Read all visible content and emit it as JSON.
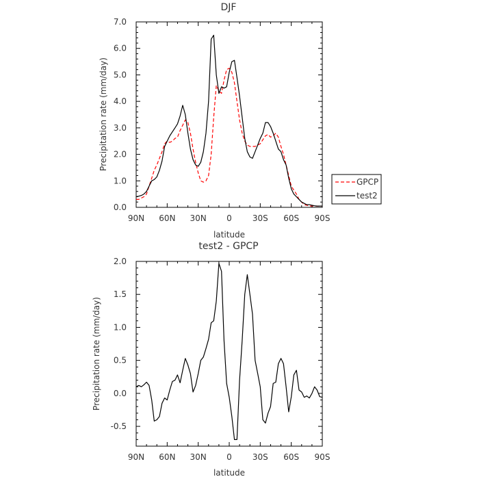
{
  "chart_data": [
    {
      "type": "line",
      "title": "DJF",
      "xlabel": "latitude",
      "ylabel": "Precipitation rate (mm/day)",
      "x_ticks": [
        "90N",
        "60N",
        "30N",
        "0",
        "30S",
        "60S",
        "90S"
      ],
      "y_ticks": [
        "0.0",
        "1.0",
        "2.0",
        "3.0",
        "4.0",
        "5.0",
        "6.0",
        "7.0"
      ],
      "xlim": [
        -90,
        90
      ],
      "ylim": [
        0,
        7
      ],
      "x_direction": "North (90N) on the left, South (90S) on the right",
      "legend_position": "right of plot, bottom",
      "series": [
        {
          "name": "GPCP",
          "color": "#ff0000",
          "dash": "dashed",
          "x": [
            -90,
            -87.5,
            -85,
            -82.5,
            -80,
            -77.5,
            -75,
            -72.5,
            -70,
            -67.5,
            -65,
            -62.5,
            -60,
            -57.5,
            -55,
            -52.5,
            -50,
            -47.5,
            -45,
            -42.5,
            -40,
            -37.5,
            -35,
            -32.5,
            -30,
            -27.5,
            -25,
            -22.5,
            -20,
            -17.5,
            -15,
            -12.5,
            -10,
            -7.5,
            -5,
            -2.5,
            0,
            2.5,
            5,
            7.5,
            10,
            12.5,
            15,
            17.5,
            20,
            22.5,
            25,
            27.5,
            30,
            32.5,
            35,
            37.5,
            40,
            42.5,
            45,
            47.5,
            50,
            52.5,
            55,
            57.5,
            60,
            62.5,
            65,
            67.5,
            70,
            72.5,
            75,
            77.5,
            80,
            82.5,
            85,
            87.5,
            90
          ],
          "y": [
            0.3,
            0.3,
            0.35,
            0.4,
            0.5,
            0.8,
            1.1,
            1.4,
            1.6,
            1.85,
            2.1,
            2.4,
            2.5,
            2.45,
            2.5,
            2.6,
            2.65,
            2.9,
            3.1,
            3.3,
            3.2,
            2.8,
            2.2,
            1.7,
            1.3,
            1.0,
            0.95,
            1.0,
            1.2,
            2.0,
            3.4,
            4.6,
            4.4,
            4.3,
            4.8,
            5.2,
            5.25,
            5.1,
            4.7,
            4.0,
            3.3,
            2.8,
            2.5,
            2.35,
            2.3,
            2.3,
            2.3,
            2.35,
            2.4,
            2.55,
            2.7,
            2.75,
            2.65,
            2.7,
            2.8,
            2.65,
            2.3,
            2.0,
            1.6,
            1.2,
            0.8,
            0.65,
            0.5,
            0.3,
            0.2,
            0.1,
            0.08,
            0.05,
            0.05,
            0.05,
            0.05,
            0.05,
            0.05
          ]
        },
        {
          "name": "test2",
          "color": "#000000",
          "dash": "solid",
          "x": [
            -90,
            -87.5,
            -85,
            -82.5,
            -80,
            -77.5,
            -75,
            -72.5,
            -70,
            -67.5,
            -65,
            -62.5,
            -60,
            -57.5,
            -55,
            -52.5,
            -50,
            -47.5,
            -45,
            -42.5,
            -40,
            -37.5,
            -35,
            -32.5,
            -30,
            -27.5,
            -25,
            -22.5,
            -20,
            -17.5,
            -15,
            -12.5,
            -10,
            -7.5,
            -5,
            -2.5,
            0,
            2.5,
            5,
            7.5,
            10,
            12.5,
            15,
            17.5,
            20,
            22.5,
            25,
            27.5,
            30,
            32.5,
            35,
            37.5,
            40,
            42.5,
            45,
            47.5,
            50,
            52.5,
            55,
            57.5,
            60,
            62.5,
            65,
            67.5,
            70,
            72.5,
            75,
            77.5,
            80,
            82.5,
            85,
            87.5,
            90
          ],
          "y": [
            0.4,
            0.42,
            0.45,
            0.5,
            0.6,
            0.8,
            1.0,
            1.05,
            1.15,
            1.4,
            1.75,
            2.3,
            2.5,
            2.7,
            2.85,
            3.0,
            3.15,
            3.45,
            3.85,
            3.5,
            2.8,
            2.2,
            1.8,
            1.6,
            1.55,
            1.7,
            2.1,
            2.8,
            4.0,
            6.35,
            6.5,
            5.0,
            4.3,
            4.55,
            4.5,
            4.55,
            5.1,
            5.5,
            5.55,
            4.9,
            4.2,
            3.4,
            2.6,
            2.1,
            1.9,
            1.85,
            2.1,
            2.35,
            2.6,
            2.8,
            3.2,
            3.2,
            3.05,
            2.8,
            2.5,
            2.2,
            2.1,
            1.8,
            1.6,
            1.1,
            0.7,
            0.5,
            0.4,
            0.3,
            0.2,
            0.15,
            0.1,
            0.1,
            0.08,
            0.06,
            0.05,
            0.05,
            0.05
          ]
        }
      ]
    },
    {
      "type": "line",
      "title": "test2 - GPCP",
      "xlabel": "latitude",
      "ylabel": "Precipitation rate (mm/day)",
      "x_ticks": [
        "90N",
        "60N",
        "30N",
        "0",
        "30S",
        "60S",
        "90S"
      ],
      "y_ticks": [
        "-0.5",
        "0.0",
        "0.5",
        "1.0",
        "1.5",
        "2.0"
      ],
      "xlim": [
        -90,
        90
      ],
      "ylim": [
        -0.8,
        2.0
      ],
      "x_direction": "North (90N) on the left, South (90S) on the right",
      "series": [
        {
          "color": "#000000",
          "dash": "solid",
          "x": [
            -90,
            -87.5,
            -85,
            -82.5,
            -80,
            -77.5,
            -75,
            -72.5,
            -70,
            -67.5,
            -65,
            -62.5,
            -60,
            -57.5,
            -55,
            -52.5,
            -50,
            -47.5,
            -45,
            -42.5,
            -40,
            -37.5,
            -35,
            -32.5,
            -30,
            -27.5,
            -25,
            -22.5,
            -20,
            -17.5,
            -15,
            -12.5,
            -10,
            -7.5,
            -5,
            -2.5,
            0,
            2.5,
            5,
            7.5,
            10,
            12.5,
            15,
            17.5,
            20,
            22.5,
            25,
            27.5,
            30,
            32.5,
            35,
            37.5,
            40,
            42.5,
            45,
            47.5,
            50,
            52.5,
            55,
            57.5,
            60,
            62.5,
            65,
            67.5,
            70,
            72.5,
            75,
            77.5,
            80,
            82.5,
            85,
            87.5,
            90
          ],
          "y": [
            0.1,
            0.12,
            0.1,
            0.13,
            0.17,
            0.12,
            -0.1,
            -0.42,
            -0.4,
            -0.35,
            -0.15,
            -0.07,
            -0.1,
            0.05,
            0.18,
            0.2,
            0.28,
            0.16,
            0.35,
            0.53,
            0.43,
            0.3,
            0.02,
            0.12,
            0.3,
            0.5,
            0.55,
            0.68,
            0.82,
            1.07,
            1.1,
            1.4,
            1.97,
            1.85,
            0.8,
            0.15,
            -0.06,
            -0.35,
            -0.7,
            -0.7,
            0.2,
            0.8,
            1.5,
            1.8,
            1.5,
            1.2,
            0.5,
            0.3,
            0.1,
            -0.4,
            -0.45,
            -0.3,
            -0.2,
            0.15,
            0.17,
            0.45,
            0.53,
            0.45,
            0.1,
            -0.28,
            -0.05,
            0.28,
            0.35,
            0.05,
            0.02,
            -0.06,
            -0.04,
            -0.07,
            0.0,
            0.1,
            0.05,
            -0.05,
            -0.06
          ]
        }
      ]
    }
  ]
}
